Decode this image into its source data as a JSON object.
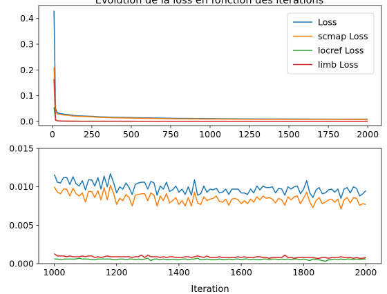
{
  "chart_data": [
    {
      "type": "line",
      "title": "Evolution de la loss en fonction des iterations",
      "xlabel": "",
      "ylabel": "",
      "xlim": [
        -87,
        2087
      ],
      "ylim": [
        -0.016,
        0.45
      ],
      "xticks": [
        0,
        250,
        500,
        750,
        1000,
        1250,
        1500,
        1750,
        2000
      ],
      "yticks": [
        0.0,
        0.1,
        0.2,
        0.3,
        0.4
      ],
      "ytick_labels": [
        "0.0",
        "0.1",
        "0.2",
        "0.3",
        "0.4"
      ],
      "grid": false,
      "legend": "top-right",
      "series": [
        {
          "name": "Loss",
          "color": "#1f77b4",
          "x": [
            10,
            20,
            30,
            40,
            60,
            80,
            100,
            130,
            160,
            200,
            250,
            300,
            400,
            500,
            600,
            700,
            800,
            1000,
            1200,
            1400,
            1600,
            1800,
            2000
          ],
          "y": [
            0.43,
            0.05,
            0.035,
            0.032,
            0.03,
            0.028,
            0.027,
            0.024,
            0.022,
            0.021,
            0.02,
            0.018,
            0.016,
            0.015,
            0.014,
            0.013,
            0.012,
            0.011,
            0.01,
            0.0098,
            0.0095,
            0.0092,
            0.009
          ]
        },
        {
          "name": "scmap Loss",
          "color": "#ff7f0e",
          "x": [
            10,
            20,
            30,
            40,
            60,
            80,
            100,
            130,
            160,
            200,
            250,
            300,
            400,
            500,
            600,
            700,
            800,
            1000,
            1200,
            1400,
            1600,
            1800,
            2000
          ],
          "y": [
            0.21,
            0.04,
            0.03,
            0.028,
            0.026,
            0.025,
            0.024,
            0.021,
            0.02,
            0.019,
            0.018,
            0.016,
            0.014,
            0.013,
            0.012,
            0.011,
            0.01,
            0.0095,
            0.0088,
            0.0085,
            0.0082,
            0.008,
            0.0078
          ]
        },
        {
          "name": "locref Loss",
          "color": "#2ca02c",
          "x": [
            10,
            20,
            30,
            40,
            60,
            100,
            200,
            400,
            700,
            1000,
            1500,
            2000
          ],
          "y": [
            0.055,
            0.008,
            0.003,
            0.002,
            0.0015,
            0.001,
            0.0008,
            0.0007,
            0.0006,
            0.0006,
            0.0006,
            0.0006
          ]
        },
        {
          "name": "limb Loss",
          "color": "#d62728",
          "x": [
            10,
            20,
            30,
            40,
            60,
            100,
            200,
            400,
            700,
            1000,
            1500,
            2000
          ],
          "y": [
            0.165,
            0.006,
            0.003,
            0.002,
            0.0016,
            0.0013,
            0.0011,
            0.001,
            0.0009,
            0.0009,
            0.0008,
            0.0008
          ]
        }
      ]
    },
    {
      "type": "line",
      "title": "",
      "xlabel": "Iteration",
      "ylabel": "",
      "xlim": [
        950,
        2050
      ],
      "ylim": [
        0.0,
        0.015
      ],
      "xticks": [
        1000,
        1200,
        1400,
        1600,
        1800,
        2000
      ],
      "yticks": [
        0.0,
        0.005,
        0.01,
        0.015
      ],
      "ytick_labels": [
        "0.000",
        "0.005",
        "0.010",
        "0.015"
      ],
      "grid": false,
      "x_start": 1000,
      "x_step": 10,
      "series": [
        {
          "name": "Loss",
          "color": "#1f77b4",
          "y": [
            0.0116,
            0.0106,
            0.0105,
            0.0112,
            0.0112,
            0.0103,
            0.0113,
            0.0104,
            0.0101,
            0.0108,
            0.0096,
            0.0109,
            0.0109,
            0.0101,
            0.0112,
            0.0097,
            0.0114,
            0.01,
            0.0117,
            0.0106,
            0.0092,
            0.01,
            0.0097,
            0.0105,
            0.0099,
            0.009,
            0.0103,
            0.0105,
            0.0106,
            0.0106,
            0.0097,
            0.0107,
            0.0105,
            0.0089,
            0.0101,
            0.0097,
            0.0106,
            0.0094,
            0.0096,
            0.0101,
            0.0093,
            0.0097,
            0.009,
            0.01,
            0.0089,
            0.0109,
            0.0089,
            0.0091,
            0.0101,
            0.0093,
            0.0097,
            0.0096,
            0.0098,
            0.0092,
            0.0093,
            0.0097,
            0.009,
            0.0097,
            0.0097,
            0.0097,
            0.0092,
            0.0092,
            0.009,
            0.0097,
            0.0092,
            0.0101,
            0.0096,
            0.0101,
            0.0099,
            0.0099,
            0.01,
            0.0092,
            0.0098,
            0.0097,
            0.0089,
            0.01,
            0.0097,
            0.01,
            0.0101,
            0.0091,
            0.0097,
            0.0108,
            0.0092,
            0.0086,
            0.0096,
            0.0099,
            0.0091,
            0.0092,
            0.0096,
            0.0097,
            0.0093,
            0.0097,
            0.0085,
            0.0097,
            0.0099,
            0.0092,
            0.01,
            0.0098,
            0.0088,
            0.0091,
            0.0095
          ]
        },
        {
          "name": "scmap Loss",
          "color": "#ff7f0e",
          "y": [
            0.01,
            0.0093,
            0.0091,
            0.0097,
            0.0097,
            0.0088,
            0.0098,
            0.0091,
            0.0088,
            0.0092,
            0.008,
            0.0094,
            0.0094,
            0.0086,
            0.0095,
            0.0083,
            0.0099,
            0.0083,
            0.0102,
            0.0092,
            0.0077,
            0.0085,
            0.0082,
            0.009,
            0.0086,
            0.0075,
            0.0089,
            0.009,
            0.0091,
            0.0091,
            0.0082,
            0.0092,
            0.0089,
            0.0075,
            0.0088,
            0.0082,
            0.0091,
            0.0079,
            0.0082,
            0.0086,
            0.0077,
            0.0082,
            0.0075,
            0.0086,
            0.0075,
            0.0093,
            0.0079,
            0.0077,
            0.0087,
            0.0082,
            0.0084,
            0.0085,
            0.0088,
            0.0081,
            0.008,
            0.0084,
            0.0076,
            0.0084,
            0.0085,
            0.0083,
            0.0078,
            0.0082,
            0.0078,
            0.0084,
            0.008,
            0.0087,
            0.0083,
            0.0088,
            0.0085,
            0.0086,
            0.0084,
            0.0079,
            0.0085,
            0.0083,
            0.0076,
            0.0087,
            0.0083,
            0.0087,
            0.0088,
            0.0078,
            0.0085,
            0.0093,
            0.008,
            0.0073,
            0.0082,
            0.0086,
            0.0078,
            0.008,
            0.0083,
            0.0084,
            0.008,
            0.0084,
            0.0071,
            0.0083,
            0.0086,
            0.0079,
            0.0086,
            0.0085,
            0.0076,
            0.0078,
            0.0077
          ]
        },
        {
          "name": "locref Loss",
          "color": "#2ca02c",
          "y": [
            0.0006,
            0.0006,
            0.0005,
            0.0006,
            0.0006,
            0.0006,
            0.0006,
            0.0006,
            0.0007,
            0.0006,
            0.0006,
            0.0006,
            0.0005,
            0.0005,
            0.0006,
            0.0006,
            0.0006,
            0.0006,
            0.0006,
            0.0005,
            0.0005,
            0.0006,
            0.0006,
            0.0005,
            0.0006,
            0.0006,
            0.0005,
            0.0006,
            0.0005,
            0.0006,
            0.0007,
            0.0004,
            0.0006,
            0.0006,
            0.0005,
            0.0006,
            0.0005,
            0.0005,
            0.0006,
            0.0005,
            0.0005,
            0.0006,
            0.0006,
            0.0005,
            0.0006,
            0.0006,
            0.0007,
            0.0005,
            0.0005,
            0.0006,
            0.0005,
            0.0005,
            0.0005,
            0.0006,
            0.0005,
            0.0005,
            0.0006,
            0.0005,
            0.0006,
            0.0006,
            0.0005,
            0.0006,
            0.0006,
            0.0005,
            0.0006,
            0.0005,
            0.0005,
            0.0006,
            0.0006,
            0.0005,
            0.0006,
            0.0006,
            0.0005,
            0.0006,
            0.0005,
            0.0006,
            0.0005,
            0.0006,
            0.0006,
            0.0005,
            0.0006,
            0.0005,
            0.0004,
            0.0006,
            0.0005,
            0.0005,
            0.0004,
            0.0003,
            0.0005,
            0.0005,
            0.0006,
            0.0005,
            0.0006,
            0.0005,
            0.0006,
            0.0006,
            0.0005,
            0.0006,
            0.0005,
            0.0006,
            0.0006
          ]
        },
        {
          "name": "limb Loss",
          "color": "#d62728",
          "y": [
            0.0013,
            0.001,
            0.001,
            0.001,
            0.0009,
            0.001,
            0.0009,
            0.0009,
            0.0009,
            0.001,
            0.0009,
            0.001,
            0.001,
            0.0008,
            0.0009,
            0.0008,
            0.0009,
            0.001,
            0.0009,
            0.0009,
            0.0009,
            0.0009,
            0.0009,
            0.0009,
            0.0009,
            0.0008,
            0.0009,
            0.0009,
            0.0011,
            0.0008,
            0.0011,
            0.0009,
            0.0009,
            0.0009,
            0.0008,
            0.0009,
            0.0008,
            0.0009,
            0.0009,
            0.0008,
            0.0008,
            0.0008,
            0.0009,
            0.0009,
            0.0008,
            0.0009,
            0.001,
            0.0009,
            0.0008,
            0.001,
            0.0008,
            0.0008,
            0.0008,
            0.0009,
            0.0008,
            0.0008,
            0.0008,
            0.0008,
            0.0008,
            0.0009,
            0.0008,
            0.0009,
            0.0008,
            0.0008,
            0.0008,
            0.0009,
            0.0009,
            0.0008,
            0.0008,
            0.0007,
            0.0008,
            0.0008,
            0.0008,
            0.0008,
            0.0011,
            0.0008,
            0.0008,
            0.0007,
            0.0008,
            0.0008,
            0.0008,
            0.0008,
            0.0008,
            0.0008,
            0.0007,
            0.0007,
            0.0008,
            0.0008,
            0.0007,
            0.0008,
            0.0008,
            0.0008,
            0.0009,
            0.0008,
            0.0008,
            0.0008,
            0.0007,
            0.0008,
            0.0007,
            0.0007,
            0.0008
          ]
        }
      ]
    }
  ]
}
